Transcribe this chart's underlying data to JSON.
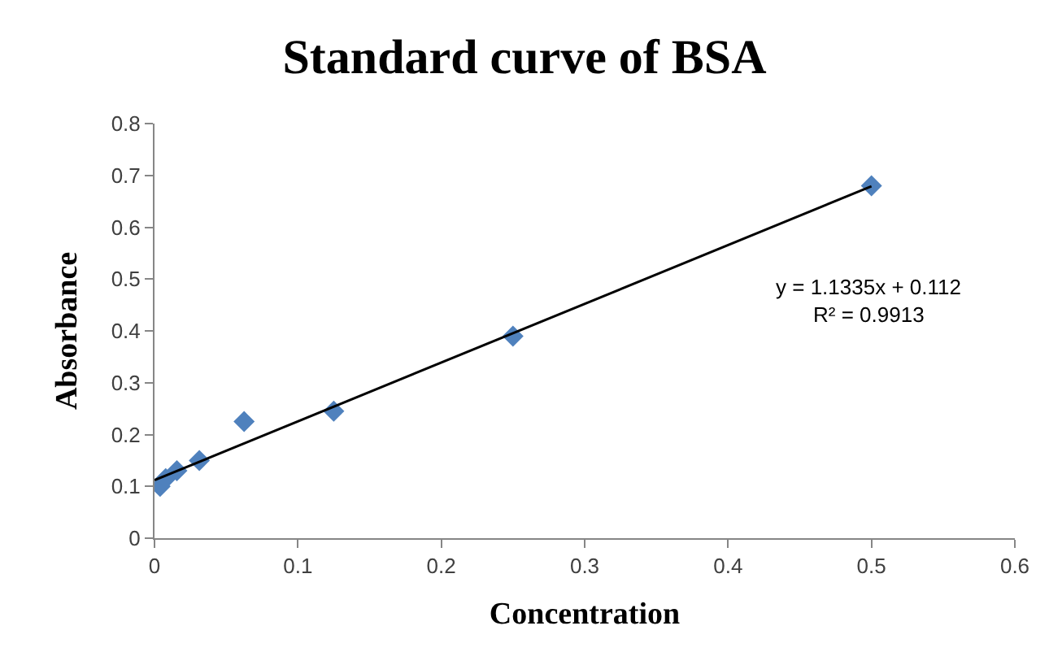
{
  "chart_data": {
    "type": "scatter",
    "title": "Standard curve of BSA",
    "xlabel": "Concentration",
    "ylabel": "Absorbance",
    "xlim": [
      0,
      0.6
    ],
    "xticks": [
      0,
      0.1,
      0.2,
      0.3,
      0.4,
      0.5,
      0.6
    ],
    "ylim": [
      0,
      0.8
    ],
    "yticks": [
      0,
      0.1,
      0.2,
      0.3,
      0.4,
      0.5,
      0.6,
      0.7,
      0.8
    ],
    "grid": false,
    "marker": "diamond",
    "series": [
      {
        "color": "#4f81bd",
        "x": [
          0.0039,
          0.0078,
          0.0156,
          0.03125,
          0.0625,
          0.125,
          0.25,
          0.5
        ],
        "values": [
          0.1,
          0.115,
          0.13,
          0.15,
          0.225,
          0.245,
          0.39,
          0.68
        ]
      },
      {
        "type": "line",
        "marker": "none",
        "color": "#000000",
        "x": [
          0,
          0.5
        ],
        "values": [
          0.112,
          0.679
        ]
      }
    ],
    "annotations": [
      "y = 1.1335x + 0.112",
      "R² = 0.9913"
    ]
  }
}
